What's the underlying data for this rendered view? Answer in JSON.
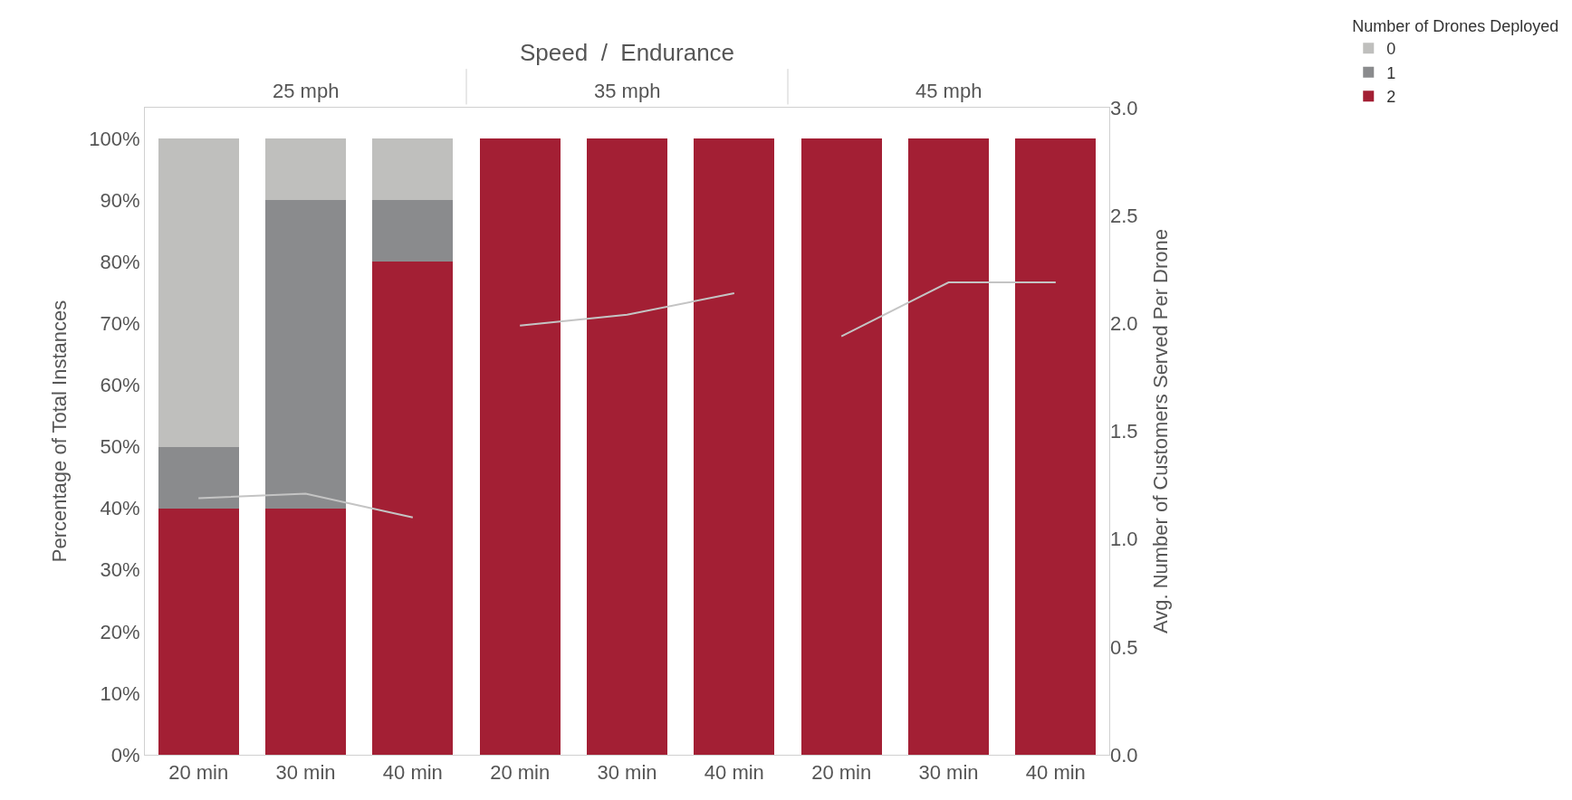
{
  "chart_data": {
    "type": "bar",
    "stacked": true,
    "title": "Speed  /  Endurance",
    "annotations": [
      "25 mph",
      "35 mph",
      "45 mph"
    ],
    "categories": [
      "20 min",
      "30 min",
      "40 min",
      "20 min",
      "30 min",
      "40 min",
      "20 min",
      "30 min",
      "40 min"
    ],
    "ylabel": "Percentage of Total Instances",
    "ylim": [
      0,
      105
    ],
    "yticks": [
      {
        "value": 0,
        "label": "0%"
      },
      {
        "value": 10,
        "label": "10%"
      },
      {
        "value": 20,
        "label": "20%"
      },
      {
        "value": 30,
        "label": "30%"
      },
      {
        "value": 40,
        "label": "40%"
      },
      {
        "value": 50,
        "label": "50%"
      },
      {
        "value": 60,
        "label": "60%"
      },
      {
        "value": 70,
        "label": "70%"
      },
      {
        "value": 80,
        "label": "80%"
      },
      {
        "value": 90,
        "label": "90%"
      },
      {
        "value": 100,
        "label": "100%"
      }
    ],
    "y2label": "Avg. Number of Customers Served Per Drone",
    "y2lim": [
      0,
      3
    ],
    "y2ticks": [
      {
        "value": 0,
        "label": "0.0"
      },
      {
        "value": 0.5,
        "label": "0.5"
      },
      {
        "value": 1,
        "label": "1.0"
      },
      {
        "value": 1.5,
        "label": "1.5"
      },
      {
        "value": 2,
        "label": "2.0"
      },
      {
        "value": 2.5,
        "label": "2.5"
      },
      {
        "value": 3,
        "label": "3.0"
      }
    ],
    "legend": "right",
    "legend_title": "Number of Drones Deployed",
    "series": [
      {
        "name": "2",
        "color": "#a31f34",
        "values": [
          40,
          40,
          80,
          100,
          100,
          100,
          100,
          100,
          100
        ]
      },
      {
        "name": "1",
        "color": "#8a8b8d",
        "values": [
          10,
          50,
          10,
          0,
          0,
          0,
          0,
          0,
          0
        ]
      },
      {
        "name": "0",
        "color": "#bfbfbd",
        "values": [
          50,
          10,
          10,
          0,
          0,
          0,
          0,
          0,
          0
        ]
      },
      {
        "type": "line",
        "axis": "y2",
        "color": "#c4c4c4",
        "values": [
          1.19,
          1.21,
          1.1,
          null,
          null,
          null,
          null,
          null,
          null
        ]
      },
      {
        "type": "line",
        "axis": "y2",
        "color": "#c4c4c4",
        "values": [
          null,
          null,
          null,
          1.99,
          2.04,
          2.14,
          null,
          null,
          null
        ]
      },
      {
        "type": "line",
        "axis": "y2",
        "color": "#c4c4c4",
        "values": [
          null,
          null,
          null,
          null,
          null,
          null,
          1.94,
          2.19,
          2.19
        ]
      }
    ]
  }
}
